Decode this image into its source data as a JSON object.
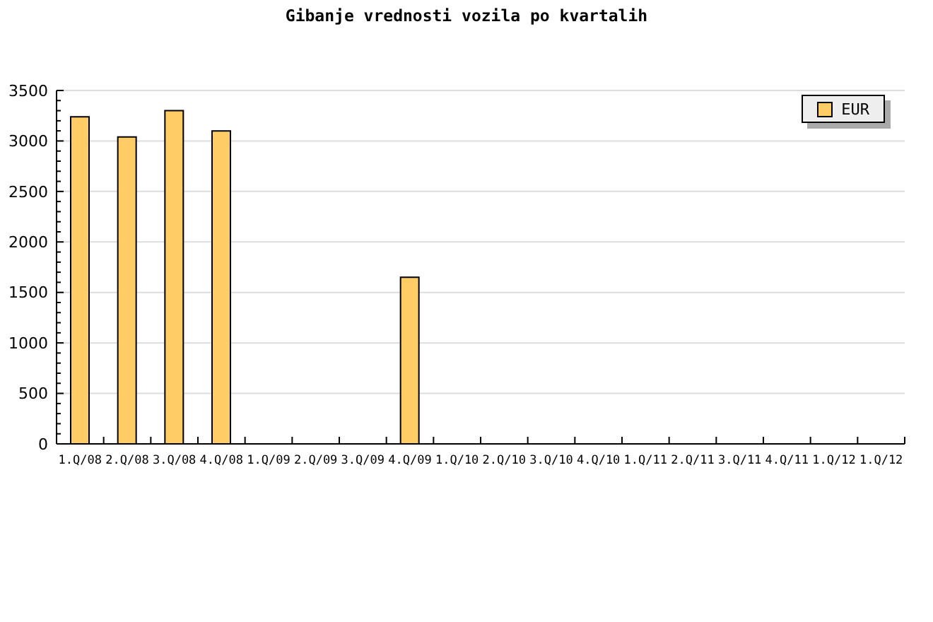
{
  "chart_data": {
    "type": "bar",
    "title": "Gibanje vrednosti vozila po kvartalih",
    "categories": [
      "1.Q/08",
      "2.Q/08",
      "3.Q/08",
      "4.Q/08",
      "1.Q/09",
      "2.Q/09",
      "3.Q/09",
      "4.Q/09",
      "1.Q/10",
      "2.Q/10",
      "3.Q/10",
      "4.Q/10",
      "1.Q/11",
      "2.Q/11",
      "3.Q/11",
      "4.Q/11",
      "1.Q/12",
      "1.Q/12"
    ],
    "series": [
      {
        "name": "EUR",
        "color": "#ffcc66",
        "values": [
          3240,
          3040,
          3300,
          3100,
          null,
          null,
          null,
          1650,
          null,
          null,
          null,
          null,
          null,
          null,
          null,
          null,
          null,
          null
        ]
      }
    ],
    "ylim": [
      0,
      3500
    ],
    "yticks": [
      0,
      {
        "value": 100,
        "label": null
      },
      {
        "value": 200,
        "label": null
      },
      {
        "value": 300,
        "label": null
      },
      {
        "value": 400,
        "label": null
      },
      500,
      {
        "value": 600,
        "label": null
      },
      {
        "value": 700,
        "label": null
      },
      {
        "value": 800,
        "label": null
      },
      {
        "value": 900,
        "label": null
      },
      1000,
      {
        "value": 1100,
        "label": null
      },
      {
        "value": 1200,
        "label": null
      },
      {
        "value": 1300,
        "label": null
      },
      {
        "value": 1400,
        "label": null
      },
      1500,
      {
        "value": 1600,
        "label": null
      },
      {
        "value": 1700,
        "label": null
      },
      {
        "value": 1800,
        "label": null
      },
      {
        "value": 1900,
        "label": null
      },
      2000,
      {
        "value": 2100,
        "label": null
      },
      {
        "value": 2200,
        "label": null
      },
      {
        "value": 2300,
        "label": null
      },
      {
        "value": 2400,
        "label": null
      },
      2500,
      {
        "value": 2600,
        "label": null
      },
      {
        "value": 2700,
        "label": null
      },
      {
        "value": 2800,
        "label": null
      },
      {
        "value": 2900,
        "label": null
      },
      3000,
      {
        "value": 3100,
        "label": null
      },
      {
        "value": 3200,
        "label": null
      },
      {
        "value": 3300,
        "label": null
      },
      {
        "value": 3400,
        "label": null
      },
      3500
    ],
    "grid": "y",
    "legend": "top right"
  }
}
